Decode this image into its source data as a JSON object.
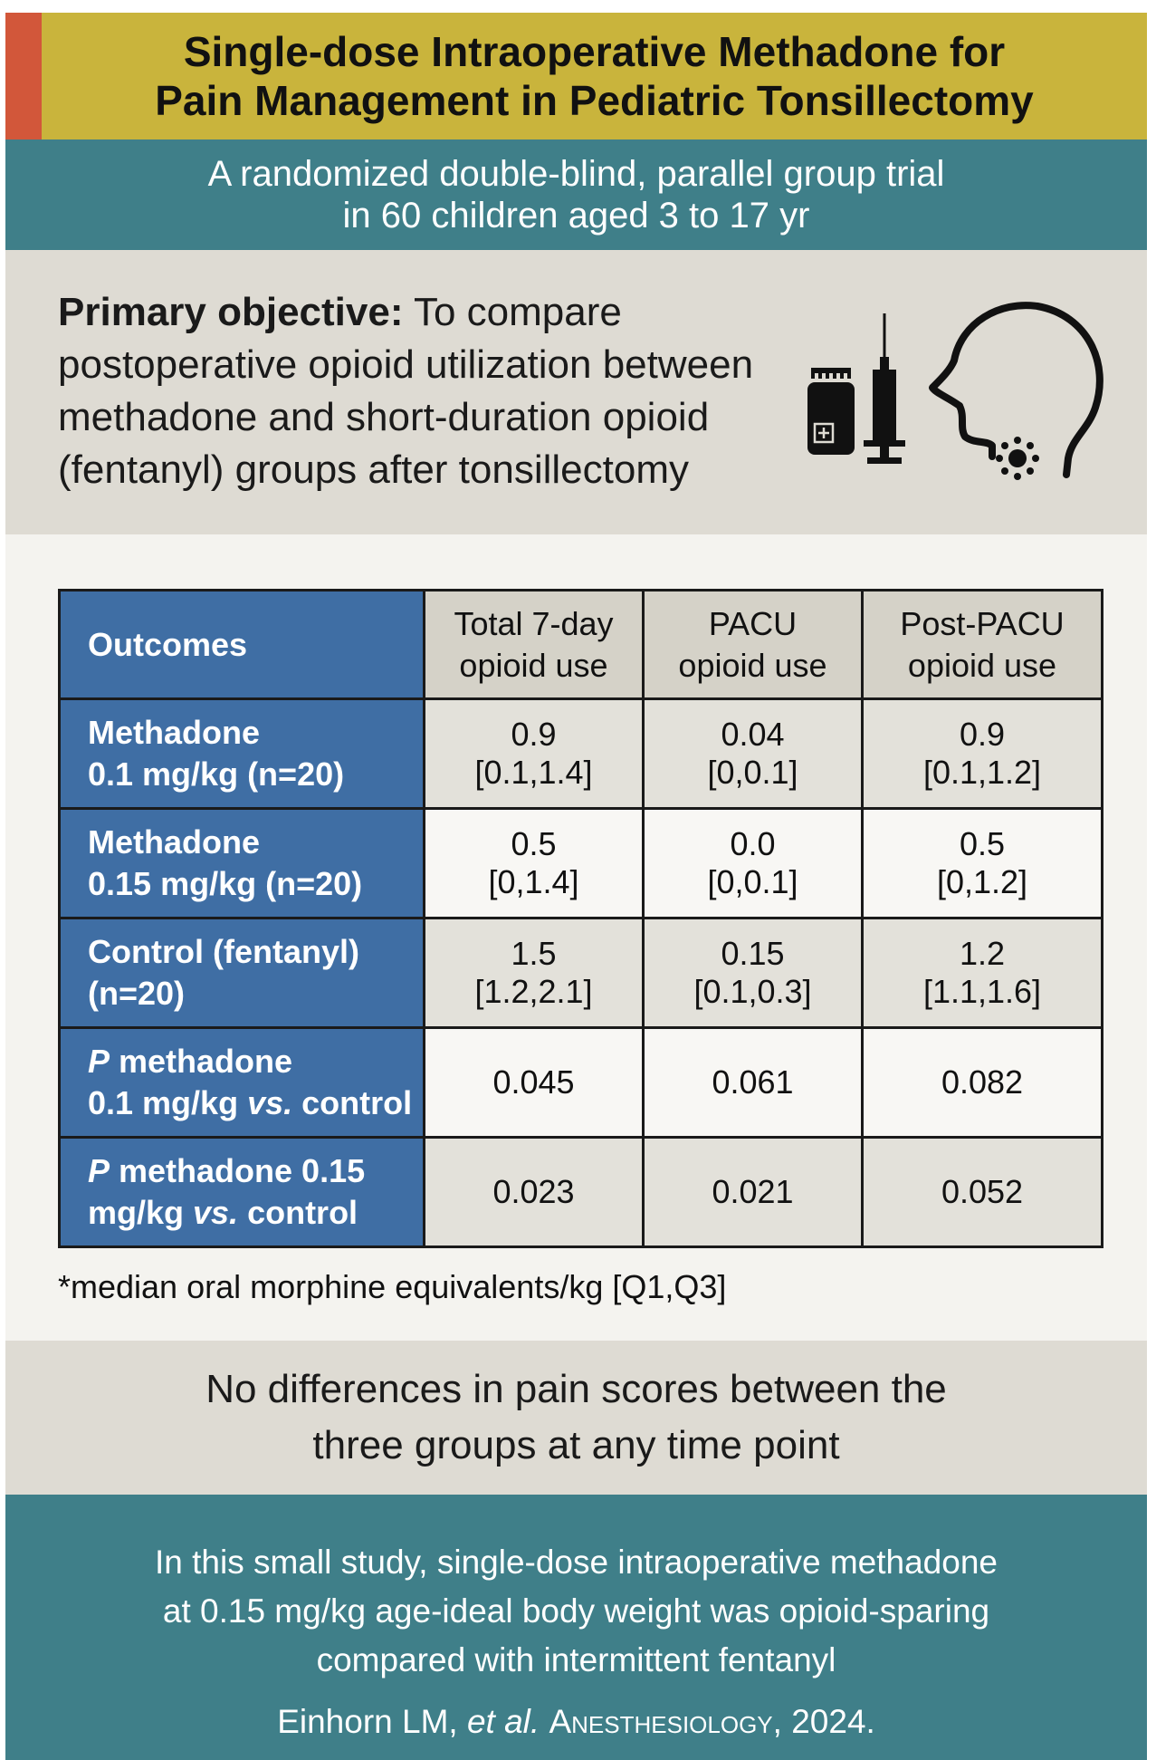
{
  "title": {
    "line1": "Single-dose Intraoperative Methadone for",
    "line2": "Pain Management in Pediatric Tonsillectomy"
  },
  "subtitle": {
    "line1": "A randomized double-blind, parallel group trial",
    "line2": "in 60 children aged 3 to 17 yr"
  },
  "objective": {
    "label": "Primary objective:",
    "line1": "To compare",
    "line2": "postoperative opioid utilization between",
    "line3": "methadone and short-duration opioid",
    "line4": "(fentanyl) groups after tonsillectomy",
    "icons": [
      "medicine-bottle-icon",
      "syringe-icon",
      "head-profile-icon"
    ]
  },
  "table": {
    "header": {
      "outcomes": "Outcomes",
      "col1_line1": "Total 7-day",
      "col1_line2": "opioid use",
      "col2_line1": "PACU",
      "col2_line2": "opioid use",
      "col3_line1": "Post-PACU",
      "col3_line2": "opioid use"
    },
    "rows": [
      {
        "label_line1": "Methadone",
        "label_line2": "0.1 mg/kg (n=20)",
        "c1_line1": "0.9",
        "c1_line2": "[0.1,1.4]",
        "c2_line1": "0.04",
        "c2_line2": "[0,0.1]",
        "c3_line1": "0.9",
        "c3_line2": "[0.1,1.2]"
      },
      {
        "label_line1": "Methadone",
        "label_line2": "0.15 mg/kg (n=20)",
        "c1_line1": "0.5",
        "c1_line2": "[0,1.4]",
        "c2_line1": "0.0",
        "c2_line2": "[0,0.1]",
        "c3_line1": "0.5",
        "c3_line2": "[0,1.2]"
      },
      {
        "label_line1": "Control (fentanyl)",
        "label_line2": "(n=20)",
        "c1_line1": "1.5",
        "c1_line2": "[1.2,2.1]",
        "c2_line1": "0.15",
        "c2_line2": "[0.1,0.3]",
        "c3_line1": "1.2",
        "c3_line2": "[1.1,1.6]"
      }
    ],
    "p_rows": [
      {
        "p": "P",
        "label_line1_rest": " methadone",
        "label_line2_a": "0.1 mg/kg ",
        "vs": "vs.",
        "label_line2_b": " control",
        "c1": "0.045",
        "c2": "0.061",
        "c3": "0.082"
      },
      {
        "p": "P",
        "label_line1_rest": " methadone 0.15",
        "label_line2_a": "mg/kg ",
        "vs": "vs.",
        "label_line2_b": " control",
        "c1": "0.023",
        "c2": "0.021",
        "c3": "0.052"
      }
    ],
    "footnote": "*median oral morphine equivalents/kg [Q1,Q3]"
  },
  "pain": {
    "line1": "No differences in pain scores between the",
    "line2": "three groups at any time point"
  },
  "conclusion": {
    "line1": "In this small study, single-dose intraoperative methadone",
    "line2": "at 0.15 mg/kg age-ideal body weight was opioid-sparing",
    "line3": "compared with intermittent fentanyl"
  },
  "citation": {
    "authors": "Einhorn LM,",
    "etal": "et al.",
    "journal": "Anesthesiology",
    "year": ", 2024."
  }
}
